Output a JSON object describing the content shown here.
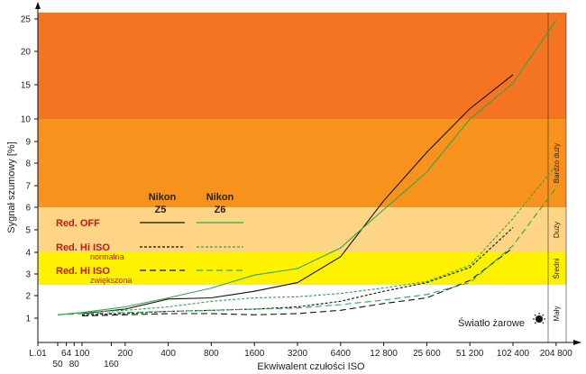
{
  "chart_data": {
    "type": "line",
    "xlabel": "Ekwiwalent czułości ISO",
    "ylabel": "Sygnał szumowy [%]",
    "ylim": [
      0.5,
      26
    ],
    "x_ticks_top": [
      {
        "iso": 0.01,
        "label": "L.01"
      },
      {
        "iso": 64,
        "label": "64"
      },
      {
        "iso": 100,
        "label": "100"
      },
      {
        "iso": 200,
        "label": "200"
      },
      {
        "iso": 400,
        "label": "400"
      },
      {
        "iso": 800,
        "label": "800"
      },
      {
        "iso": 1600,
        "label": "1600"
      },
      {
        "iso": 3200,
        "label": "3200"
      },
      {
        "iso": 6400,
        "label": "6400"
      },
      {
        "iso": 12800,
        "label": "12 800"
      },
      {
        "iso": 25600,
        "label": "25 600"
      },
      {
        "iso": 51200,
        "label": "51 200"
      },
      {
        "iso": 102400,
        "label": "102 400"
      },
      {
        "iso": 204800,
        "label": "204 800"
      }
    ],
    "x_ticks_bottom": [
      {
        "iso": 50,
        "label": "50"
      },
      {
        "iso": 80,
        "label": "80"
      },
      {
        "iso": 160,
        "label": "160"
      }
    ],
    "y_ticks": [
      1,
      2,
      3,
      4,
      5,
      6,
      7,
      8,
      9,
      10,
      15,
      20,
      25
    ],
    "zones": [
      {
        "from": 0.5,
        "to": 2.5,
        "color": "#ffffff",
        "label": "Mały"
      },
      {
        "from": 2.5,
        "to": 4,
        "color": "#fff200",
        "label": "Średni"
      },
      {
        "from": 4,
        "to": 6,
        "color": "#fdd585",
        "label": "Duży"
      },
      {
        "from": 6,
        "to": 10,
        "color": "#f7931d",
        "label": "Bardzo duży"
      },
      {
        "from": 10,
        "to": 26,
        "color": "#f47421",
        "label": ""
      }
    ],
    "legend": {
      "col1_line1": "Nikon",
      "col1_line2": "Z5",
      "col2_line1": "Nikon",
      "col2_line2": "Z6",
      "rows": [
        {
          "label": "Red. OFF",
          "sub": ""
        },
        {
          "label": "Red. Hi ISO",
          "sub": "normalna"
        },
        {
          "label": "Red. Hi ISO",
          "sub": "zwiększona"
        }
      ]
    },
    "annotation": "Światło żarowe",
    "colors": {
      "z5": "#111111",
      "z6": "#2ea84a",
      "legend_text": "#c21919"
    },
    "series": [
      {
        "name": "Z5 Red. OFF",
        "camera": "Z5",
        "style": "solid",
        "points": [
          [
            100,
            1.2
          ],
          [
            200,
            1.4
          ],
          [
            400,
            1.85
          ],
          [
            800,
            1.9
          ],
          [
            1600,
            2.2
          ],
          [
            3200,
            2.6
          ],
          [
            6400,
            3.8
          ],
          [
            12800,
            6.3
          ],
          [
            25600,
            8.5
          ],
          [
            51200,
            11.5
          ],
          [
            102400,
            16.5
          ]
        ]
      },
      {
        "name": "Z6 Red. OFF",
        "camera": "Z6",
        "style": "solid",
        "points": [
          [
            50,
            1.15
          ],
          [
            100,
            1.25
          ],
          [
            200,
            1.5
          ],
          [
            400,
            1.9
          ],
          [
            800,
            2.35
          ],
          [
            1600,
            2.95
          ],
          [
            3200,
            3.25
          ],
          [
            6400,
            4.2
          ],
          [
            12800,
            5.9
          ],
          [
            25600,
            7.6
          ],
          [
            51200,
            10
          ],
          [
            102400,
            15.2
          ],
          [
            204800,
            24.8
          ]
        ]
      },
      {
        "name": "Z5 Red. Hi ISO normalna",
        "camera": "Z5",
        "style": "short-dash",
        "points": [
          [
            100,
            1.15
          ],
          [
            200,
            1.2
          ],
          [
            400,
            1.3
          ],
          [
            800,
            1.35
          ],
          [
            1600,
            1.4
          ],
          [
            3200,
            1.5
          ],
          [
            6400,
            1.75
          ],
          [
            12800,
            2.2
          ],
          [
            25600,
            2.6
          ],
          [
            51200,
            3.3
          ],
          [
            102400,
            5.1
          ]
        ]
      },
      {
        "name": "Z6 Red. Hi ISO normalna",
        "camera": "Z6",
        "style": "short-dash",
        "points": [
          [
            50,
            1.15
          ],
          [
            100,
            1.25
          ],
          [
            200,
            1.35
          ],
          [
            400,
            1.5
          ],
          [
            800,
            1.75
          ],
          [
            1600,
            1.9
          ],
          [
            3200,
            1.95
          ],
          [
            6400,
            2.1
          ],
          [
            12800,
            2.35
          ],
          [
            25600,
            2.65
          ],
          [
            51200,
            3.4
          ],
          [
            102400,
            5.5
          ],
          [
            204800,
            7.9
          ]
        ]
      },
      {
        "name": "Z5 Red. Hi ISO zwiększona",
        "camera": "Z5",
        "style": "long-dash",
        "points": [
          [
            100,
            1.1
          ],
          [
            200,
            1.15
          ],
          [
            400,
            1.2
          ],
          [
            800,
            1.2
          ],
          [
            1600,
            1.15
          ],
          [
            3200,
            1.2
          ],
          [
            6400,
            1.35
          ],
          [
            12800,
            1.65
          ],
          [
            25600,
            1.9
          ],
          [
            51200,
            2.7
          ],
          [
            102400,
            4.2
          ]
        ]
      },
      {
        "name": "Z6 Red. Hi ISO zwiększona",
        "camera": "Z6",
        "style": "long-dash",
        "points": [
          [
            50,
            1.15
          ],
          [
            100,
            1.2
          ],
          [
            200,
            1.25
          ],
          [
            400,
            1.3
          ],
          [
            800,
            1.35
          ],
          [
            1600,
            1.4
          ],
          [
            3200,
            1.45
          ],
          [
            6400,
            1.6
          ],
          [
            12800,
            1.8
          ],
          [
            25600,
            2.05
          ],
          [
            51200,
            2.6
          ],
          [
            102400,
            4.3
          ],
          [
            204800,
            6.9
          ]
        ]
      }
    ]
  }
}
